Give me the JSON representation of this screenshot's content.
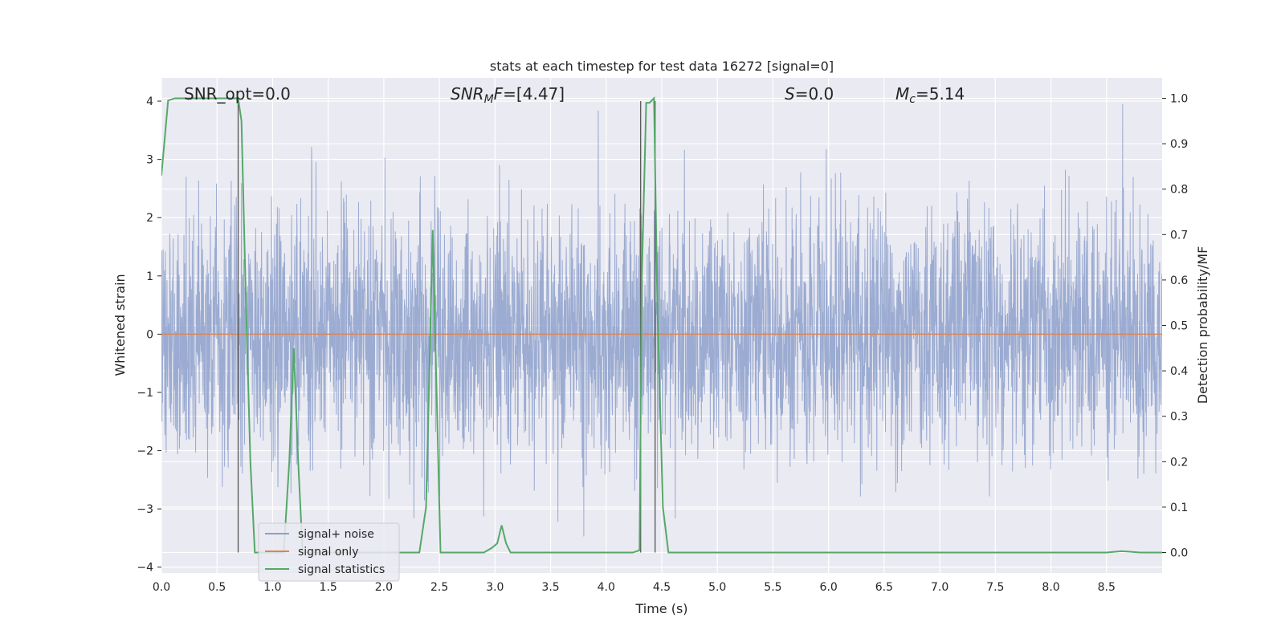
{
  "chart_data": {
    "type": "line",
    "title": "stats at each timestep for test data 16272 [signal=0]",
    "xlabel": "Time (s)",
    "ylabel_left": "Whitened strain",
    "ylabel_right": "Detection probability/MF",
    "xlim": [
      0,
      9.0
    ],
    "ylim_left": [
      -4.1,
      4.4
    ],
    "ylim_right": [
      -0.045,
      1.045
    ],
    "x_ticks": [
      "0.0",
      "0.5",
      "1.0",
      "1.5",
      "2.0",
      "2.5",
      "3.0",
      "3.5",
      "4.0",
      "4.5",
      "5.0",
      "5.5",
      "6.0",
      "6.5",
      "7.0",
      "7.5",
      "8.0",
      "8.5"
    ],
    "x_tick_values": [
      0,
      0.5,
      1.0,
      1.5,
      2.0,
      2.5,
      3.0,
      3.5,
      4.0,
      4.5,
      5.0,
      5.5,
      6.0,
      6.5,
      7.0,
      7.5,
      8.0,
      8.5
    ],
    "y_ticks_left": [
      "−4",
      "−3",
      "−2",
      "−1",
      "0",
      "1",
      "2",
      "3",
      "4"
    ],
    "y_tick_values_left": [
      -4,
      -3,
      -2,
      -1,
      0,
      1,
      2,
      3,
      4
    ],
    "y_ticks_right": [
      "0.0",
      "0.1",
      "0.2",
      "0.3",
      "0.4",
      "0.5",
      "0.6",
      "0.7",
      "0.8",
      "0.9",
      "1.0"
    ],
    "y_tick_values_right": [
      0,
      0.1,
      0.2,
      0.3,
      0.4,
      0.5,
      0.6,
      0.7,
      0.8,
      0.9,
      1.0
    ],
    "grid": true,
    "legend_position": "lower-left",
    "annotations": {
      "snr_opt": "SNR_opt=0.0",
      "snr_mf_base": "SNR",
      "snr_mf_sub1": "M",
      "snr_mf_sub2": "F",
      "snr_mf_value": "=[4.47]",
      "s_label": "S",
      "s_value": "=0.0",
      "mc_base": "M",
      "mc_sub": "c",
      "mc_value": "=5.14"
    },
    "vertical_lines_x": [
      0.69,
      4.31,
      4.44
    ],
    "series": [
      {
        "name": "signal+ noise",
        "axis": "left",
        "color": "#8da0cb",
        "description_of_values": "dense noisy strain, approx. gaussian, amplitude up to about ±4",
        "amplitude_std": 1.05
      },
      {
        "name": "signal only",
        "axis": "left",
        "color": "#dd8452",
        "x": [
          0,
          9.0
        ],
        "values": [
          0,
          0
        ]
      },
      {
        "name": "signal statistics",
        "axis": "right",
        "color": "#55a868",
        "x": [
          0.0,
          0.06,
          0.12,
          0.2,
          0.3,
          0.4,
          0.5,
          0.6,
          0.66,
          0.69,
          0.72,
          0.76,
          0.8,
          0.84,
          0.9,
          1.0,
          1.1,
          1.15,
          1.19,
          1.23,
          1.27,
          1.32,
          1.5,
          2.0,
          2.2,
          2.32,
          2.38,
          2.41,
          2.44,
          2.47,
          2.51,
          2.56,
          2.7,
          2.9,
          2.97,
          3.02,
          3.06,
          3.1,
          3.14,
          3.3,
          3.8,
          4.24,
          4.3,
          4.32,
          4.36,
          4.39,
          4.43,
          4.46,
          4.51,
          4.56,
          5.0,
          6.0,
          7.0,
          8.0,
          8.5,
          8.63,
          8.7,
          8.8,
          9.0
        ],
        "values": [
          0.83,
          0.995,
          1.0,
          1.0,
          1.0,
          1.0,
          1.0,
          1.0,
          1.0,
          1.0,
          0.95,
          0.55,
          0.2,
          0.0,
          0.0,
          0.0,
          0.0,
          0.2,
          0.45,
          0.2,
          0.0,
          0.0,
          0.0,
          0.0,
          0.0,
          0.0,
          0.1,
          0.4,
          0.71,
          0.4,
          0.0,
          0.0,
          0.0,
          0.0,
          0.01,
          0.02,
          0.06,
          0.02,
          0.0,
          0.0,
          0.0,
          0.0,
          0.005,
          0.6,
          0.99,
          0.99,
          1.0,
          0.55,
          0.1,
          0.0,
          0.0,
          0.0,
          0.0,
          0.0,
          0.0,
          0.003,
          0.002,
          0.0,
          0.0
        ]
      }
    ]
  }
}
